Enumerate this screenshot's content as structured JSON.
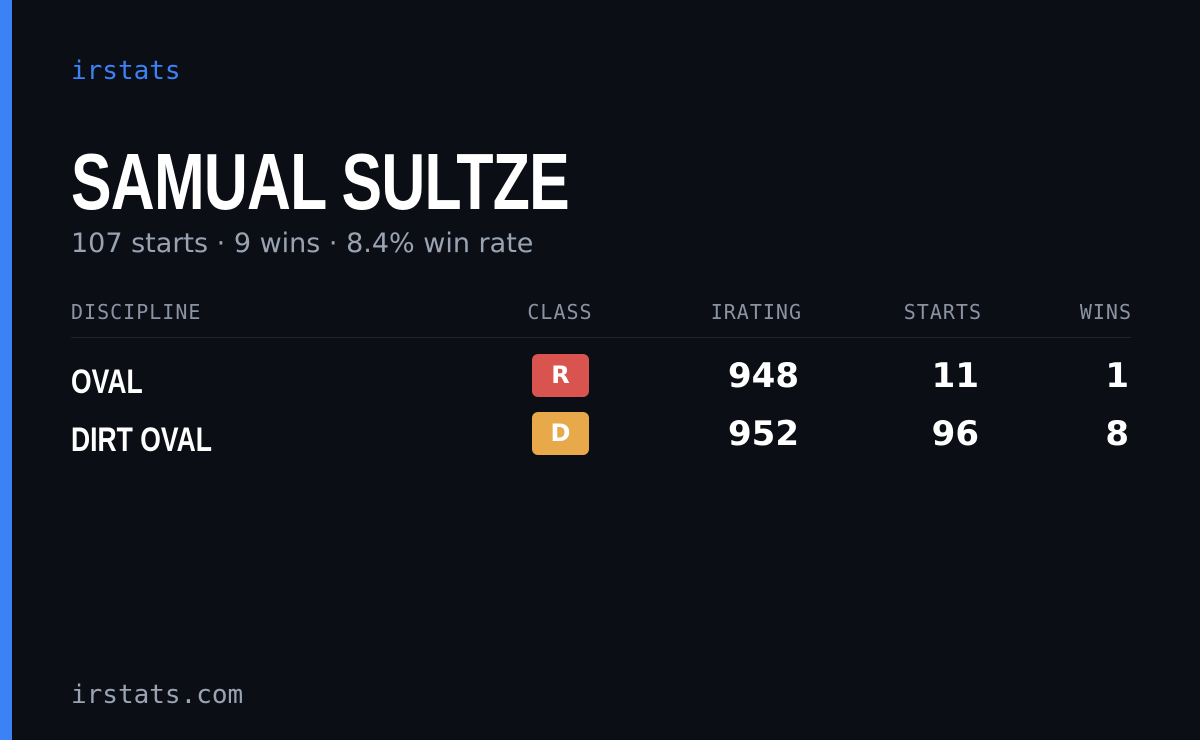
{
  "brand": "irstats",
  "title": "SAMUAL SULTZE",
  "subtitle": "107 starts · 9 wins · 8.4% win rate",
  "table": {
    "columns": [
      "DISCIPLINE",
      "CLASS",
      "IRATING",
      "STARTS",
      "WINS"
    ],
    "rows": [
      [
        "OVAL",
        "R",
        948,
        11,
        1
      ],
      [
        "DIRT OVAL",
        "D",
        952,
        96,
        8
      ]
    ]
  },
  "footer": "irstats.com"
}
